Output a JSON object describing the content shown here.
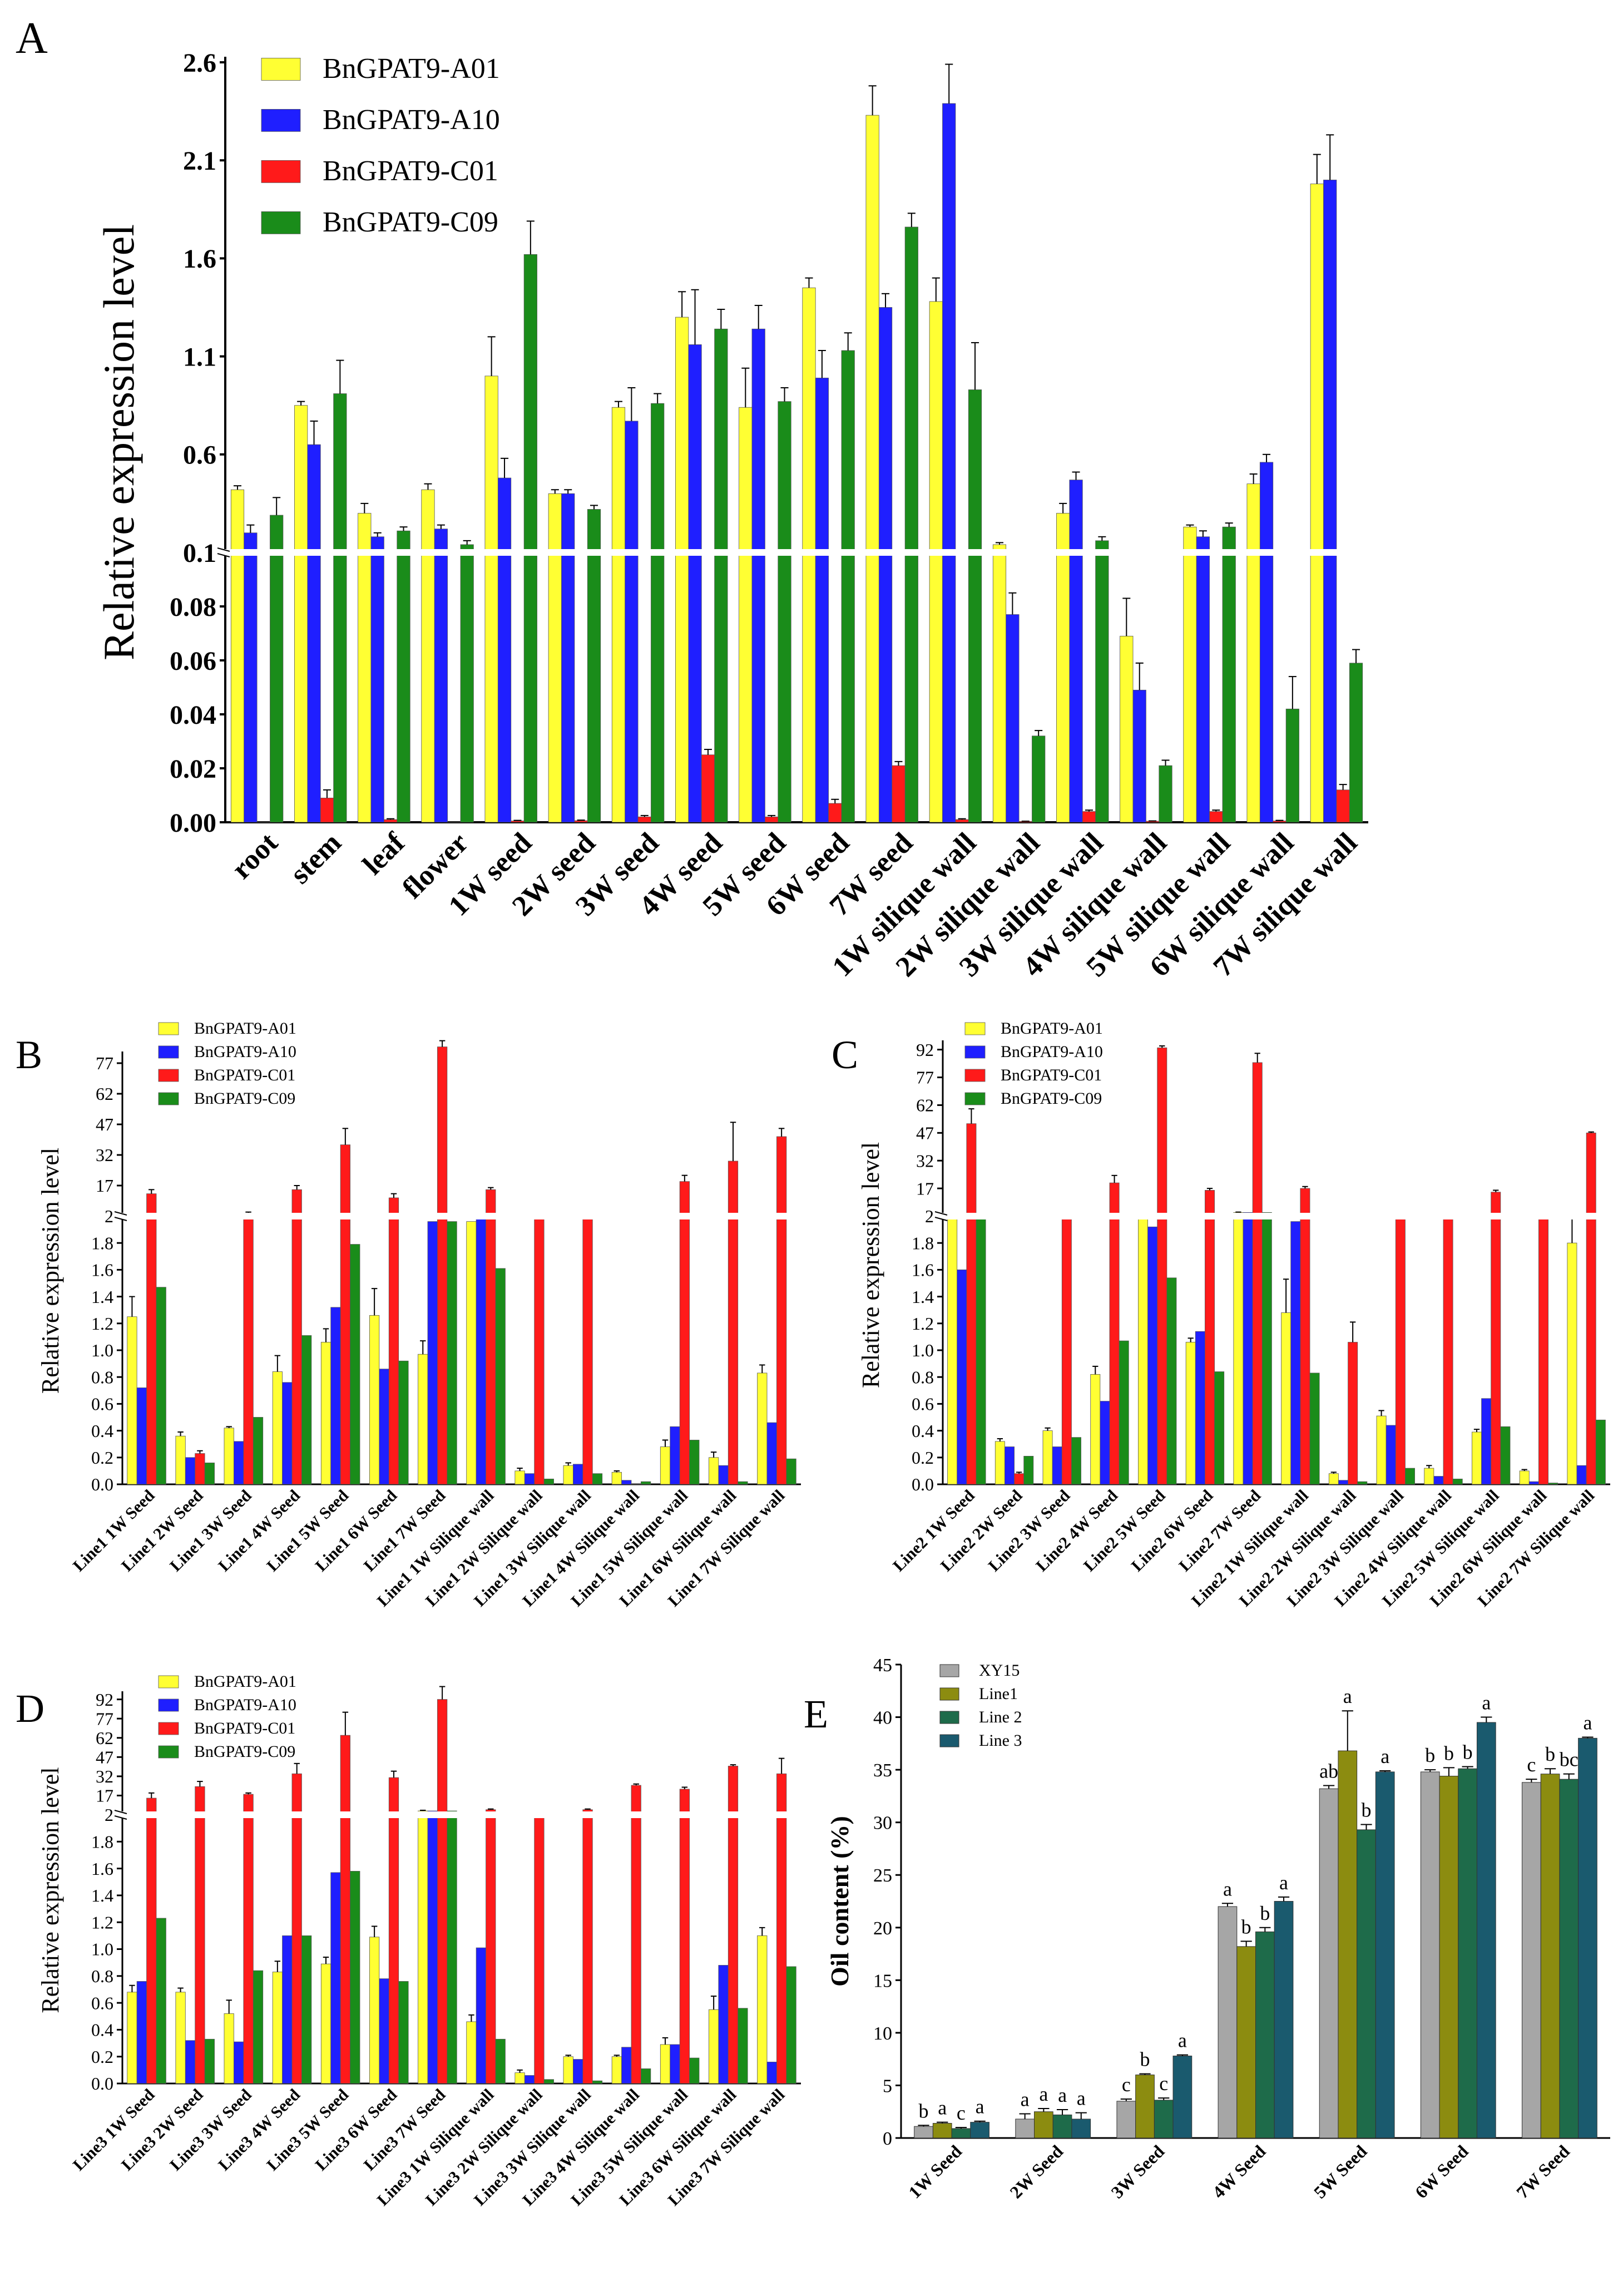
{
  "colors": {
    "BnGPAT9-A01": "#ffff33",
    "BnGPAT9-A10": "#1f1fff",
    "BnGPAT9-C01": "#ff1a1a",
    "BnGPAT9-C09": "#1a8c1a",
    "XY15": "#a6a6a6",
    "Line1": "#8c8c10",
    "Line 2": "#1e6b4a",
    "Line 3": "#1a5a6e"
  },
  "chart_data": [
    {
      "panel": "A",
      "type": "bar",
      "ylabel": "Relative expression level",
      "y_ticks_upper": [
        "0.1",
        "0.6",
        "1.1",
        "1.6",
        "2.1",
        "2.6"
      ],
      "y_ticks_lower": [
        "0.00",
        "0.02",
        "0.04",
        "0.06",
        "0.08"
      ],
      "categories": [
        "root",
        "stem",
        "leaf",
        "flower",
        "1W seed",
        "2W seed",
        "3W seed",
        "4W seed",
        "5W seed",
        "6W seed",
        "7W seed",
        "1W silique wall",
        "2W silique wall",
        "3W silique wall",
        "4W silique wall",
        "5W silique wall",
        "6W silique wall",
        "7W silique wall"
      ],
      "series": [
        {
          "name": "BnGPAT9-A01",
          "values": [
            0.42,
            0.85,
            0.3,
            0.42,
            1.0,
            0.4,
            0.84,
            1.3,
            0.84,
            1.45,
            2.33,
            1.38,
            0.14,
            0.3,
            0.069,
            0.23,
            0.45,
            1.98
          ],
          "errors": [
            0.02,
            0.02,
            0.05,
            0.03,
            0.2,
            0.02,
            0.03,
            0.13,
            0.2,
            0.05,
            0.15,
            0.12,
            0.01,
            0.05,
            0.014,
            0.01,
            0.05,
            0.15
          ]
        },
        {
          "name": "BnGPAT9-A10",
          "values": [
            0.2,
            0.65,
            0.18,
            0.22,
            0.48,
            0.4,
            0.77,
            1.16,
            1.24,
            0.99,
            1.35,
            2.39,
            0.077,
            0.47,
            0.049,
            0.18,
            0.56,
            2.0
          ],
          "errors": [
            0.04,
            0.12,
            0.02,
            0.02,
            0.1,
            0.02,
            0.17,
            0.28,
            0.12,
            0.14,
            0.07,
            0.2,
            0.008,
            0.04,
            0.01,
            0.03,
            0.04,
            0.23
          ]
        },
        {
          "name": "BnGPAT9-C01",
          "values": [
            0.0,
            0.009,
            0.001,
            0.0,
            0.0005,
            0.0006,
            0.002,
            0.025,
            0.002,
            0.007,
            0.021,
            0.001,
            0.0003,
            0.004,
            0.0004,
            0.004,
            0.0005,
            0.012
          ],
          "errors": [
            0.0,
            0.003,
            0.0003,
            0.0,
            0.0002,
            0.0002,
            0.0005,
            0.002,
            0.0005,
            0.0015,
            0.0015,
            0.0003,
            0.0001,
            0.0005,
            0.0001,
            0.0005,
            0.0002,
            0.002
          ]
        },
        {
          "name": "BnGPAT9-C09",
          "values": [
            0.29,
            0.91,
            0.21,
            0.14,
            1.62,
            0.32,
            0.86,
            1.24,
            0.87,
            1.13,
            1.76,
            0.93,
            0.032,
            0.16,
            0.021,
            0.23,
            0.042,
            0.059
          ],
          "errors": [
            0.09,
            0.17,
            0.02,
            0.02,
            0.17,
            0.02,
            0.05,
            0.1,
            0.07,
            0.09,
            0.07,
            0.24,
            0.002,
            0.02,
            0.002,
            0.02,
            0.012,
            0.005
          ]
        }
      ],
      "legend": "top-left"
    },
    {
      "panel": "B",
      "type": "bar",
      "ylabel": "Relative expression level",
      "y_ticks_upper": [
        "2",
        "17",
        "32",
        "47",
        "62",
        "77"
      ],
      "y_ticks_lower": [
        "0.0",
        "0.2",
        "0.4",
        "0.6",
        "0.8",
        "1.0",
        "1.2",
        "1.4",
        "1.6",
        "1.8"
      ],
      "categories": [
        "Line1 1W Seed",
        "Line1 2W Seed",
        "Line1 3W Seed",
        "Line1 4W Seed",
        "Line1 5W Seed",
        "Line1 6W Seed",
        "Line1 7W Seed",
        "Line1 1W Silique wall",
        "Line1 2W Silique wall",
        "Line1 3W Silique wall",
        "Line1 4W Silique wall",
        "Line1 5W Silique wall",
        "Line1 6W Silique wall",
        "Line1 7W Silique wall"
      ],
      "series": [
        {
          "name": "BnGPAT9-A01",
          "values": [
            1.25,
            0.36,
            0.42,
            0.84,
            1.06,
            1.26,
            0.97,
            1.96,
            0.1,
            0.14,
            0.09,
            0.28,
            0.2,
            0.83
          ],
          "errors": [
            0.15,
            0.03,
            0.01,
            0.12,
            0.1,
            0.2,
            0.1,
            0.0,
            0.02,
            0.02,
            0.01,
            0.05,
            0.04,
            0.06
          ]
        },
        {
          "name": "BnGPAT9-A10",
          "values": [
            0.72,
            0.2,
            0.32,
            0.76,
            1.32,
            0.86,
            1.96,
            2.5,
            0.08,
            0.15,
            0.03,
            0.43,
            0.14,
            0.46
          ]
        },
        {
          "name": "BnGPAT9-C01",
          "values": [
            13,
            0.23,
            3,
            15,
            37,
            11,
            85,
            15,
            2,
            2,
            0.0,
            19,
            29,
            41
          ],
          "errors": [
            2,
            0.02,
            1,
            2,
            8,
            2,
            3,
            1,
            0.2,
            0.2,
            0.0,
            3,
            19,
            4
          ]
        },
        {
          "name": "BnGPAT9-C09",
          "values": [
            1.47,
            0.16,
            0.5,
            1.11,
            1.79,
            0.92,
            1.96,
            1.61,
            0.04,
            0.08,
            0.02,
            0.33,
            0.02,
            0.19
          ]
        }
      ],
      "legend": "top-left"
    },
    {
      "panel": "C",
      "type": "bar",
      "ylabel": "Relative expression level",
      "y_ticks_upper": [
        "2",
        "17",
        "32",
        "47",
        "62",
        "77",
        "92"
      ],
      "y_ticks_lower": [
        "0.0",
        "0.2",
        "0.4",
        "0.6",
        "0.8",
        "1.0",
        "1.2",
        "1.4",
        "1.6",
        "1.8"
      ],
      "categories": [
        "Line2 1W Seed",
        "Line2 2W Seed",
        "Line2 3W Seed",
        "Line2 4W Seed",
        "Line2 5W Seed",
        "Line2 6W Seed",
        "Line2 7W Seed",
        "Line2 1W Silique wall",
        "Line2 2W Silique wall",
        "Line2 3W Silique wall",
        "Line2 4W Silique wall",
        "Line2 5W Silique wall",
        "Line2 6W Silique wall",
        "Line2 7W Silique wall"
      ],
      "series": [
        {
          "name": "BnGPAT9-A01",
          "values": [
            2.0,
            0.32,
            0.4,
            0.82,
            2.0,
            1.06,
            4,
            1.28,
            0.08,
            0.51,
            0.12,
            0.39,
            0.1,
            1.8
          ],
          "errors": [
            0.0,
            0.02,
            0.02,
            0.06,
            0.0,
            0.03,
            0.2,
            0.25,
            0.01,
            0.04,
            0.02,
            0.02,
            0.01,
            0.2
          ]
        },
        {
          "name": "BnGPAT9-A10",
          "values": [
            1.6,
            0.28,
            0.28,
            0.62,
            1.92,
            1.14,
            4,
            1.96,
            0.03,
            0.44,
            0.06,
            0.64,
            0.02,
            0.14
          ]
        },
        {
          "name": "BnGPAT9-C01",
          "values": [
            52,
            0.08,
            3,
            20,
            93,
            16,
            85,
            17,
            1.06,
            2,
            2,
            15,
            2,
            47
          ],
          "errors": [
            8,
            0.01,
            0.5,
            4,
            1,
            1,
            5,
            1,
            0.15,
            0.2,
            0.2,
            1,
            0.2,
            0.5
          ]
        },
        {
          "name": "BnGPAT9-C09",
          "values": [
            2.0,
            0.21,
            0.35,
            1.07,
            1.54,
            0.84,
            4,
            0.83,
            0.02,
            0.12,
            0.04,
            0.43,
            0.01,
            0.48
          ]
        }
      ],
      "legend": "top-left"
    },
    {
      "panel": "D",
      "type": "bar",
      "ylabel": "Relative expression level",
      "y_ticks_upper": [
        "2",
        "17",
        "32",
        "47",
        "62",
        "77",
        "92"
      ],
      "y_ticks_lower": [
        "0.0",
        "0.2",
        "0.4",
        "0.6",
        "0.8",
        "1.0",
        "1.2",
        "1.4",
        "1.6",
        "1.8"
      ],
      "categories": [
        "Line3 1W Seed",
        "Line3 2W Seed",
        "Line3 3W Seed",
        "Line3 4W Seed",
        "Line3 5W Seed",
        "Line3 6W Seed",
        "Line3 7W Seed",
        "Line3 1W Silique wall",
        "Line3 2W Silique wall",
        "Line3 3W Silique wall",
        "Line3 4W Silique wall",
        "Line3 5W Silique wall",
        "Line3 6W Silique wall",
        "Line3 7W Silique wall"
      ],
      "series": [
        {
          "name": "BnGPAT9-A01",
          "values": [
            0.68,
            0.68,
            0.52,
            0.83,
            0.89,
            1.09,
            5,
            0.46,
            0.08,
            0.2,
            0.2,
            0.29,
            0.55,
            1.1
          ],
          "errors": [
            0.05,
            0.03,
            0.1,
            0.08,
            0.05,
            0.08,
            0.5,
            0.05,
            0.02,
            0.01,
            0.01,
            0.05,
            0.1,
            0.06
          ]
        },
        {
          "name": "BnGPAT9-A10",
          "values": [
            0.76,
            0.32,
            0.31,
            1.1,
            1.57,
            0.78,
            5,
            1.01,
            0.06,
            0.18,
            0.27,
            0.29,
            0.88,
            0.16
          ]
        },
        {
          "name": "BnGPAT9-C01",
          "values": [
            15,
            24,
            18,
            34,
            64,
            31,
            92,
            6,
            2,
            6,
            25,
            22,
            40,
            34
          ],
          "errors": [
            4,
            4,
            1,
            8,
            18,
            5,
            10,
            0.5,
            0.5,
            0.5,
            1,
            1.5,
            1,
            12
          ]
        },
        {
          "name": "BnGPAT9-C09",
          "values": [
            1.23,
            0.33,
            0.84,
            1.1,
            1.58,
            0.76,
            5,
            0.33,
            0.03,
            0.02,
            0.11,
            0.19,
            0.56,
            0.87
          ]
        }
      ],
      "legend": "top-left"
    },
    {
      "panel": "E",
      "type": "bar",
      "ylabel": "Oil content (%)",
      "ylim": [
        0,
        45
      ],
      "y_ticks": [
        "0",
        "5",
        "10",
        "15",
        "20",
        "25",
        "30",
        "35",
        "40",
        "45"
      ],
      "categories": [
        "1W Seed",
        "2W Seed",
        "3W Seed",
        "4W Seed",
        "5W Seed",
        "6W Seed",
        "7W Seed"
      ],
      "series": [
        {
          "name": "XY15",
          "values": [
            1.1,
            1.8,
            3.5,
            22.0,
            33.2,
            34.8,
            33.8
          ],
          "errors": [
            0.1,
            0.5,
            0.2,
            0.3,
            0.3,
            0.2,
            0.3
          ],
          "letters": [
            "b",
            "a",
            "c",
            "a",
            "ab",
            "b",
            "c"
          ]
        },
        {
          "name": "Line1",
          "values": [
            1.4,
            2.5,
            6.0,
            18.2,
            36.8,
            34.4,
            34.6
          ],
          "errors": [
            0.1,
            0.3,
            0.1,
            0.5,
            3.8,
            0.8,
            0.5
          ],
          "letters": [
            "a",
            "a",
            "b",
            "b",
            "a",
            "b",
            "b"
          ]
        },
        {
          "name": "Line 2",
          "values": [
            0.9,
            2.2,
            3.6,
            19.6,
            29.3,
            35.1,
            34.1
          ],
          "errors": [
            0.1,
            0.5,
            0.2,
            0.4,
            0.5,
            0.2,
            0.5
          ],
          "letters": [
            "c",
            "a",
            "c",
            "b",
            "b",
            "b",
            "bc"
          ]
        },
        {
          "name": "Line 3",
          "values": [
            1.5,
            1.8,
            7.8,
            22.5,
            34.8,
            39.5,
            38.0
          ],
          "errors": [
            0.1,
            0.6,
            0.1,
            0.4,
            0.1,
            0.5,
            0.1
          ],
          "letters": [
            "a",
            "a",
            "a",
            "a",
            "a",
            "a",
            "a"
          ]
        }
      ],
      "legend": "top-left"
    }
  ]
}
